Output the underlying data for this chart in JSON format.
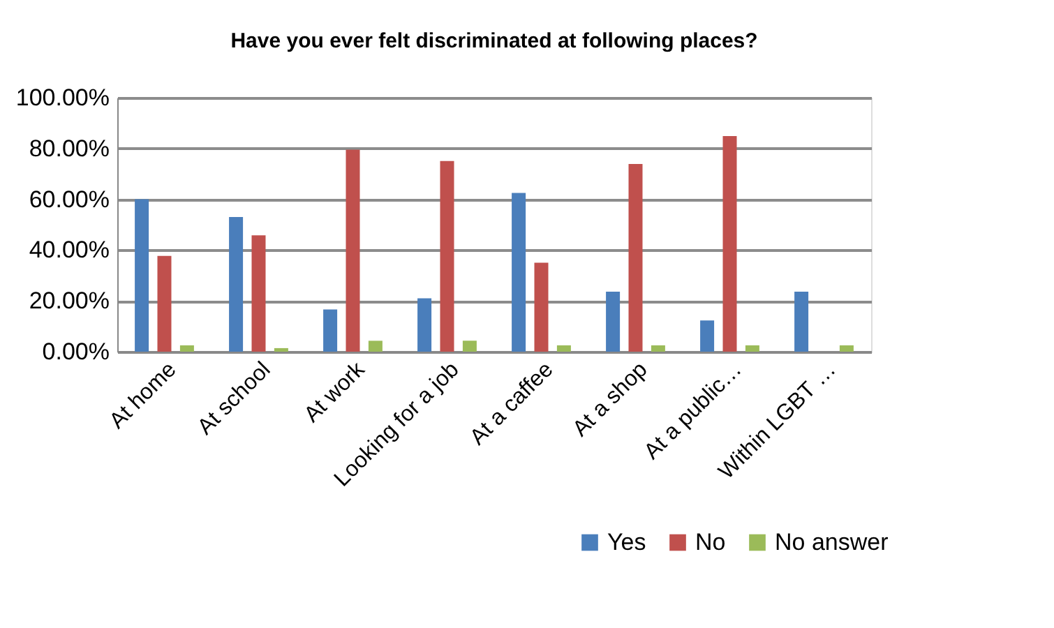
{
  "chart_data": {
    "type": "bar",
    "title": "Have you ever felt discriminated at following places?",
    "categories": [
      "At home",
      "At school",
      "At work",
      "Looking for a job",
      "At a caffee",
      "At a shop",
      "At a public…",
      "Within LGBT …"
    ],
    "series": [
      {
        "name": "Yes",
        "color": "#4a7ebb",
        "values": [
          60,
          53,
          16.6,
          21,
          62.5,
          23.6,
          12.3,
          23.6
        ]
      },
      {
        "name": "No",
        "color": "#c0504d",
        "values": [
          37.7,
          45.8,
          79.5,
          75.1,
          35,
          73.9,
          84.9,
          0
        ]
      },
      {
        "name": "No answer",
        "color": "#9bbb59",
        "values": [
          2.5,
          1.4,
          4.3,
          4.3,
          2.5,
          2.5,
          2.5,
          2.5
        ]
      }
    ],
    "ylim": [
      0,
      100
    ],
    "yticks": [
      {
        "value": 0,
        "label": "0.00%"
      },
      {
        "value": 20,
        "label": "20.00%"
      },
      {
        "value": 40,
        "label": "40.00%"
      },
      {
        "value": 60,
        "label": "60.00%"
      },
      {
        "value": 80,
        "label": "80.00%"
      },
      {
        "value": 100,
        "label": "100.00%"
      }
    ],
    "grid": "y",
    "legend": "bottom right"
  }
}
